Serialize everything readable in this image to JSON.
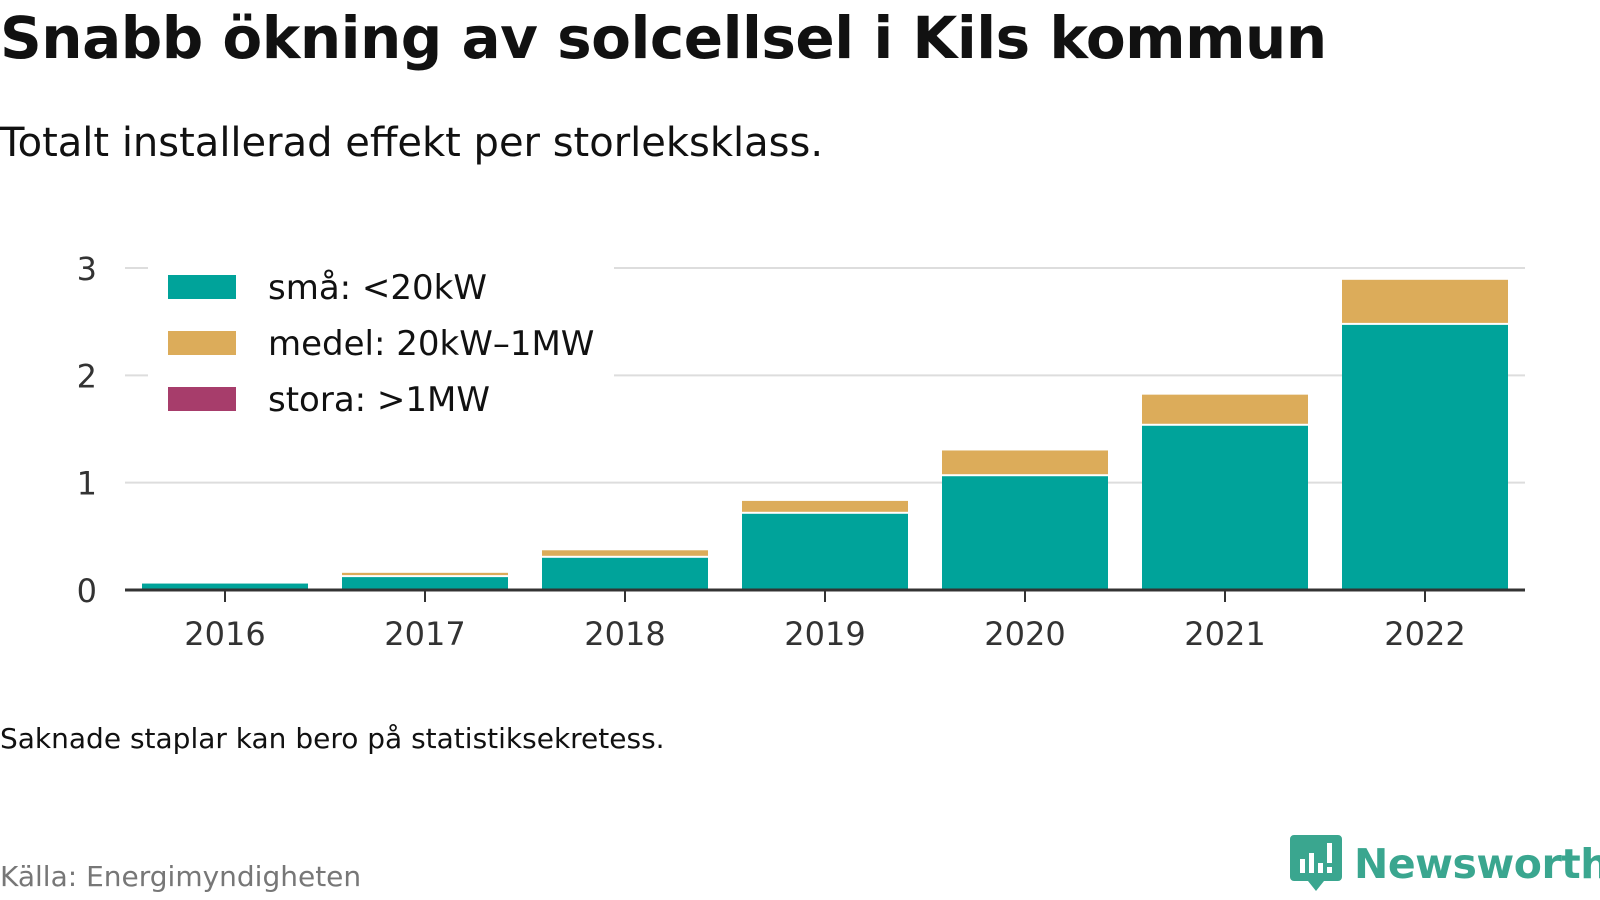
{
  "title": "Snabb ökning av solcellsel i Kils kommun",
  "subtitle": "Totalt installerad effekt per storleksklass.",
  "note": "Saknade staplar kan bero på statistiksekretess.",
  "source": "Källa: Energimyndigheten",
  "brand": {
    "name": "Newsworthy",
    "color": "#3aa68f",
    "icon": "newsworthy-logo-icon"
  },
  "chart_data": {
    "type": "bar",
    "stacked": true,
    "categories": [
      "2016",
      "2017",
      "2018",
      "2019",
      "2020",
      "2021",
      "2022"
    ],
    "series": [
      {
        "name": "små: <20kW",
        "color": "#00a39a",
        "values": [
          0.06,
          0.12,
          0.3,
          0.71,
          1.06,
          1.53,
          2.47
        ]
      },
      {
        "name": "medel: 20kW–1MW",
        "color": "#dcac5a",
        "values": [
          0.0,
          0.04,
          0.07,
          0.12,
          0.24,
          0.29,
          0.42
        ]
      },
      {
        "name": "stora: >1MW",
        "color": "#a73d6b",
        "values": [
          0,
          0,
          0,
          0,
          0,
          0,
          0
        ]
      }
    ],
    "ylim": [
      0,
      3
    ],
    "yticks": [
      "0",
      "1",
      "2",
      "3"
    ],
    "grid": true,
    "legend_position": "top-left",
    "xlabel": "",
    "ylabel": ""
  }
}
